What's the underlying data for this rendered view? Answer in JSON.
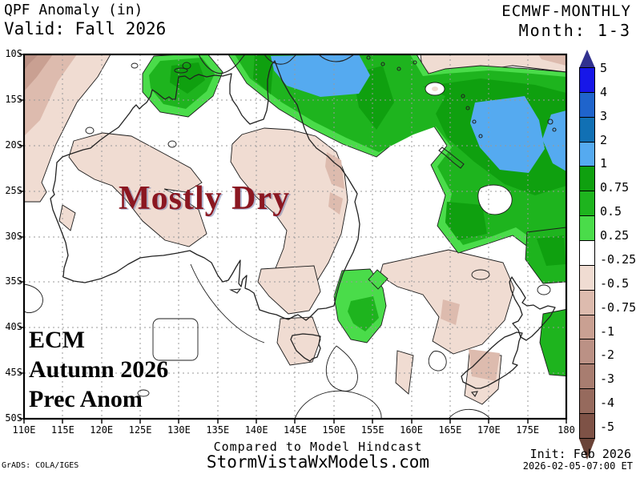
{
  "header": {
    "product": "QPF Anomaly (in)",
    "valid": "Valid: Fall 2026",
    "model": "ECMWF-MONTHLY",
    "month_range": "Month: 1-3"
  },
  "map": {
    "annotation": "Mostly Dry",
    "corner_label_lines": [
      "ECM",
      "Autumn 2026",
      "Prec Anom"
    ],
    "lat_ticks": [
      "10S",
      "15S",
      "20S",
      "25S",
      "30S",
      "35S",
      "40S",
      "45S",
      "50S"
    ],
    "lon_ticks": [
      "110E",
      "115E",
      "120E",
      "125E",
      "130E",
      "135E",
      "140E",
      "145E",
      "150E",
      "155E",
      "160E",
      "165E",
      "170E",
      "175E",
      "180"
    ]
  },
  "colorbar": {
    "tick_labels": [
      "5",
      "4",
      "3",
      "2",
      "1",
      "0.75",
      "0.5",
      "0.25",
      "-0.25",
      "-0.5",
      "-0.75",
      "-1",
      "-2",
      "-3",
      "-4",
      "-5"
    ],
    "segment_colors": [
      "#1717E8",
      "#1F64CC",
      "#1170B4",
      "#55AAF0",
      "#0FA00F",
      "#1EB41E",
      "#4ADC4A",
      "#FFFFFF",
      "#F0DCD2",
      "#DDBBAE",
      "#C9A092",
      "#BB9185",
      "#A87D70",
      "#966A5D",
      "#7E5246"
    ],
    "triangle_top_color": "#31318F",
    "triangle_bottom_color": "#6A4337"
  },
  "palette": {
    "wet_light": "#4ADC4A",
    "wet_mid": "#1EB41E",
    "wet_dark": "#0FA00F",
    "wet_blue": "#55AAF0",
    "dry_1": "#F0DCD2",
    "dry_2": "#DDBBAE",
    "dry_3": "#C9A092",
    "dry_4": "#BB9185",
    "annotation_red": "#8B1721"
  },
  "footer": {
    "compare_note": "Compared to Model Hindcast",
    "site": "StormVistaWxModels.com",
    "init_label": "Init: Feb 2026",
    "init_time": "2026-02-05-07:00 ET",
    "credit": "GrADS: COLA/IGES"
  }
}
